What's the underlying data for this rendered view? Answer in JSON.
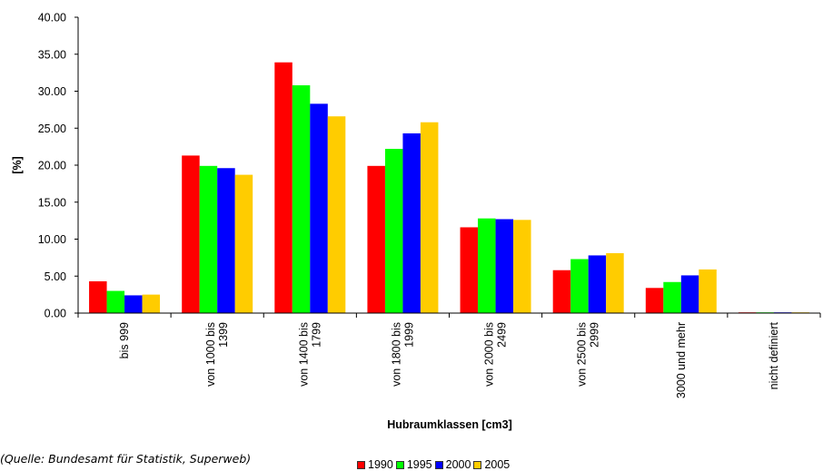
{
  "chart_data": {
    "type": "bar",
    "xlabel": "Hubraumklassen [cm3]",
    "ylabel": "[%]",
    "ylim": [
      0,
      40
    ],
    "yticks": [
      "0.00",
      "5.00",
      "10.00",
      "15.00",
      "20.00",
      "25.00",
      "30.00",
      "35.00",
      "40.00"
    ],
    "grid": false,
    "legend_position": "bottom",
    "categories": [
      [
        "bis 999"
      ],
      [
        "von 1000 bis",
        "1399"
      ],
      [
        "von 1400 bis",
        "1799"
      ],
      [
        "von 1800 bis",
        "1999"
      ],
      [
        "von 2000 bis",
        "2499"
      ],
      [
        "von 2500 bis",
        "2999"
      ],
      [
        "3000 und mehr"
      ],
      [
        "nicht definiert"
      ]
    ],
    "series": [
      {
        "name": "1990",
        "color": "#ff0000",
        "values": [
          4.3,
          21.3,
          33.9,
          19.9,
          11.6,
          5.8,
          3.4,
          0.05
        ]
      },
      {
        "name": "1995",
        "color": "#00ff00",
        "values": [
          3.0,
          19.9,
          30.8,
          22.2,
          12.8,
          7.3,
          4.2,
          0.05
        ]
      },
      {
        "name": "2000",
        "color": "#0000ff",
        "values": [
          2.4,
          19.6,
          28.3,
          24.3,
          12.7,
          7.8,
          5.1,
          0.05
        ]
      },
      {
        "name": "2005",
        "color": "#ffcc00",
        "values": [
          2.5,
          18.7,
          26.6,
          25.8,
          12.6,
          8.1,
          5.9,
          0.05
        ]
      }
    ]
  },
  "source_note": "(Quelle: Bundesamt für Statistik, Superweb)"
}
